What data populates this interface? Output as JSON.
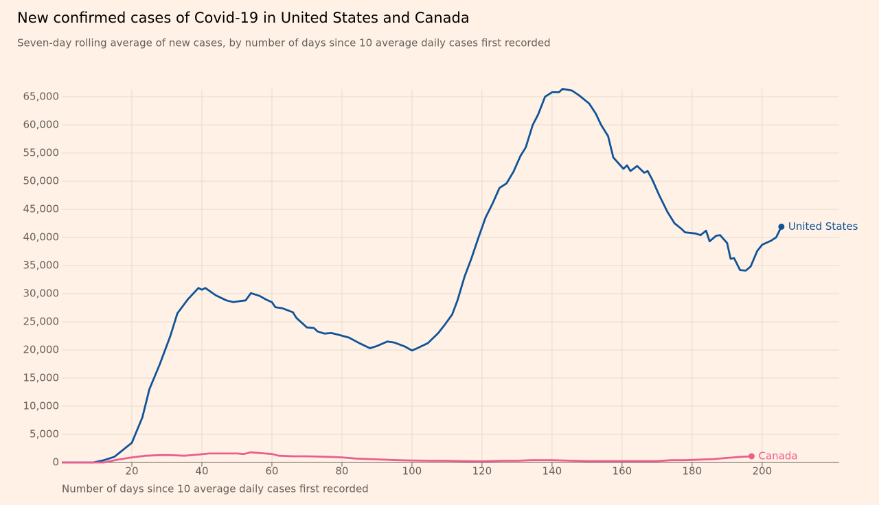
{
  "chart_data": {
    "type": "line",
    "title": "New confirmed cases of Covid-19 in United States and Canada",
    "subtitle": "Seven-day rolling average of new cases, by number of days since 10 average daily cases first recorded",
    "x_label": "Number of days since 10 average daily cases first recorded",
    "xlim": [
      0,
      222
    ],
    "ylim": [
      0,
      65000
    ],
    "xticks": [
      20,
      40,
      60,
      80,
      100,
      120,
      140,
      160,
      180,
      200
    ],
    "yticks": [
      0,
      {
        "value": 5000,
        "label": "5,000"
      },
      {
        "value": 10000,
        "label": "10,000"
      },
      {
        "value": 15000,
        "label": "15,000"
      },
      {
        "value": 20000,
        "label": "20,000"
      },
      {
        "value": 25000,
        "label": "25,000"
      },
      {
        "value": 30000,
        "label": "30,000"
      },
      {
        "value": 35000,
        "label": "35,000"
      },
      {
        "value": 40000,
        "label": "40,000"
      },
      {
        "value": 45000,
        "label": "45,000"
      },
      {
        "value": 50000,
        "label": "50,000"
      },
      {
        "value": 55000,
        "label": "55,000"
      },
      {
        "value": 60000,
        "label": "60,000"
      },
      {
        "value": 65000,
        "label": "65,000"
      }
    ],
    "grid": true,
    "series": [
      {
        "name": "United States",
        "color": "#0f5499",
        "x": [
          0,
          9,
          12,
          15,
          17,
          20,
          23,
          25,
          28,
          31,
          33,
          36,
          39,
          40,
          41,
          44,
          47,
          49,
          51,
          52.5,
          54,
          56.5,
          58.5,
          60,
          61,
          63,
          66,
          67,
          70,
          72,
          73,
          75,
          77,
          79,
          82,
          85,
          88,
          90,
          93,
          95,
          98,
          100,
          101.5,
          104.5,
          107.5,
          109.5,
          111.5,
          113,
          115,
          117,
          119,
          121,
          123,
          125,
          127,
          129,
          131,
          132.5,
          134.5,
          136,
          138,
          140,
          142,
          143,
          145.7,
          147.6,
          150.6,
          152.5,
          154,
          156,
          157.5,
          160.4,
          161.4,
          162.4,
          164.3,
          166.3,
          167.3,
          168.6,
          170.6,
          173,
          175,
          177,
          178,
          181,
          182.4,
          184,
          185,
          186.9,
          188,
          190,
          191,
          192,
          193.7,
          195.3,
          196.7,
          198.6,
          200,
          202.5,
          204,
          205.5
        ],
        "values": [
          0,
          0,
          400,
          1000,
          2000,
          3500,
          8000,
          13000,
          17500,
          22500,
          26500,
          29000,
          31000,
          30700,
          31000,
          29700,
          28800,
          28500,
          28700,
          28800,
          30100,
          29600,
          28900,
          28500,
          27600,
          27400,
          26700,
          25700,
          24000,
          23900,
          23300,
          22900,
          23000,
          22700,
          22200,
          21200,
          20300,
          20700,
          21500,
          21300,
          20600,
          19900,
          20300,
          21200,
          23000,
          24600,
          26300,
          28800,
          33000,
          36300,
          40000,
          43500,
          46000,
          48800,
          49600,
          51700,
          54500,
          56000,
          60000,
          61800,
          65000,
          65800,
          65800,
          66400,
          66100,
          65300,
          63800,
          62000,
          60000,
          58000,
          54200,
          52200,
          52800,
          51800,
          52700,
          51500,
          51800,
          50300,
          47500,
          44500,
          42500,
          41500,
          40900,
          40700,
          40400,
          41200,
          39300,
          40300,
          40400,
          39000,
          36200,
          36300,
          34200,
          34100,
          34800,
          37600,
          38700,
          39400,
          40000,
          41900
        ]
      },
      {
        "name": "Canada",
        "color": "#eb5e8d",
        "x": [
          0,
          12,
          16,
          20,
          24,
          28,
          31,
          35,
          39,
          42,
          46,
          50,
          52,
          54,
          56,
          58,
          60,
          62,
          66,
          70,
          76,
          80,
          84,
          88,
          92,
          96,
          100,
          106,
          110,
          114,
          120,
          126,
          130,
          134,
          140,
          146,
          150,
          160,
          170,
          174,
          178,
          182,
          186,
          190,
          192,
          194,
          197
        ],
        "values": [
          0,
          0,
          500,
          900,
          1200,
          1300,
          1300,
          1200,
          1400,
          1600,
          1600,
          1600,
          1500,
          1800,
          1700,
          1600,
          1500,
          1200,
          1100,
          1100,
          1000,
          900,
          700,
          600,
          500,
          400,
          350,
          300,
          300,
          250,
          200,
          300,
          300,
          400,
          400,
          300,
          250,
          250,
          250,
          400,
          400,
          500,
          600,
          800,
          900,
          1000,
          1100
        ]
      }
    ]
  }
}
